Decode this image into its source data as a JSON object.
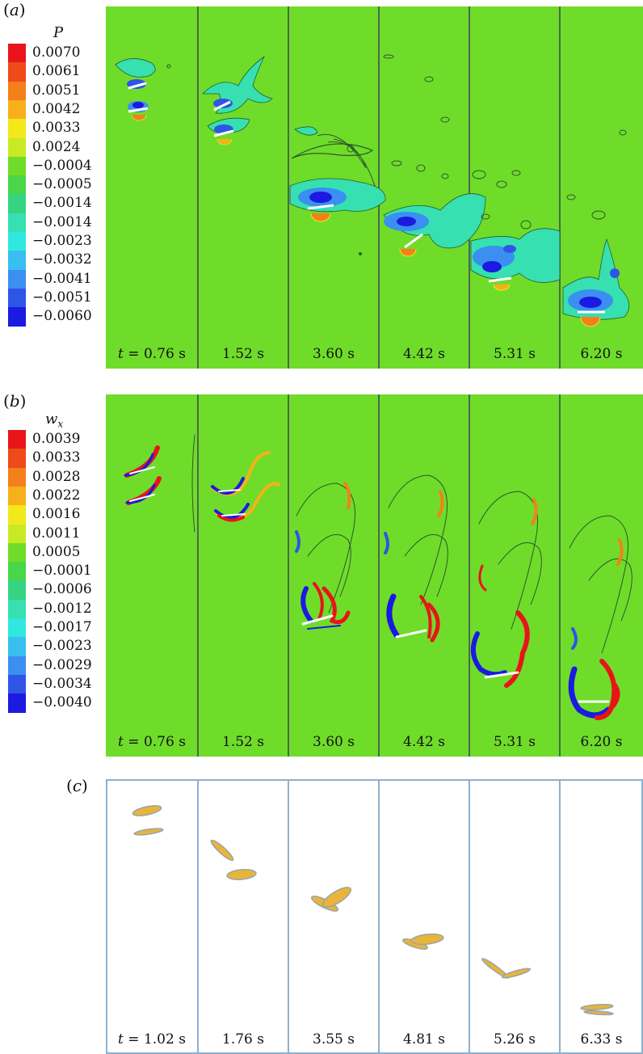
{
  "panel_a": {
    "label": "a",
    "legend": {
      "title": "P",
      "values": [
        "0.0070",
        "0.0061",
        "0.0051",
        "0.0042",
        "0.0033",
        "0.0024",
        "−0.0004",
        "−0.0005",
        "−0.0014",
        "−0.0014",
        "−0.0023",
        "−0.0032",
        "−0.0041",
        "−0.0051",
        "−0.0060"
      ],
      "colors": [
        "#e8141a",
        "#ee4a1a",
        "#f4801c",
        "#f8b01a",
        "#f2e81c",
        "#c8ea24",
        "#6fdc2a",
        "#49d64a",
        "#36d382",
        "#36e0b0",
        "#30e8e0",
        "#38bff0",
        "#3a8ff0",
        "#2e55e6",
        "#1a1ae0"
      ]
    },
    "time_prefix": "t",
    "times": [
      "= 0.76 s",
      "1.52 s",
      "3.60 s",
      "4.42 s",
      "5.31 s",
      "6.20 s"
    ]
  },
  "panel_b": {
    "label": "b",
    "legend": {
      "title": "w",
      "title_sub": "x",
      "values": [
        "0.0039",
        "0.0033",
        "0.0028",
        "0.0022",
        "0.0016",
        "0.0011",
        "0.0005",
        "−0.0001",
        "−0.0006",
        "−0.0012",
        "−0.0017",
        "−0.0023",
        "−0.0029",
        "−0.0034",
        "−0.0040"
      ],
      "colors": [
        "#e8141a",
        "#ee4a1a",
        "#f4801c",
        "#f8b01a",
        "#f2e81c",
        "#c8ea24",
        "#6fdc2a",
        "#49d64a",
        "#36d382",
        "#36e0b0",
        "#30e8e0",
        "#38bff0",
        "#3a8ff0",
        "#2e55e6",
        "#1a1ae0"
      ]
    },
    "time_prefix": "t",
    "times": [
      "= 0.76 s",
      "1.52 s",
      "3.60 s",
      "4.42 s",
      "5.31 s",
      "6.20 s"
    ]
  },
  "panel_c": {
    "label": "c",
    "time_prefix": "t",
    "times": [
      "= 1.02 s",
      "1.76 s",
      "3.55 s",
      "4.81 s",
      "5.26 s",
      "6.33 s"
    ]
  },
  "colors": {
    "field_green": "#6fdc2a",
    "contour_line": "#2a5a2a",
    "disk_fill": "#e8b53a",
    "frame_border": "#8fb0cc"
  }
}
